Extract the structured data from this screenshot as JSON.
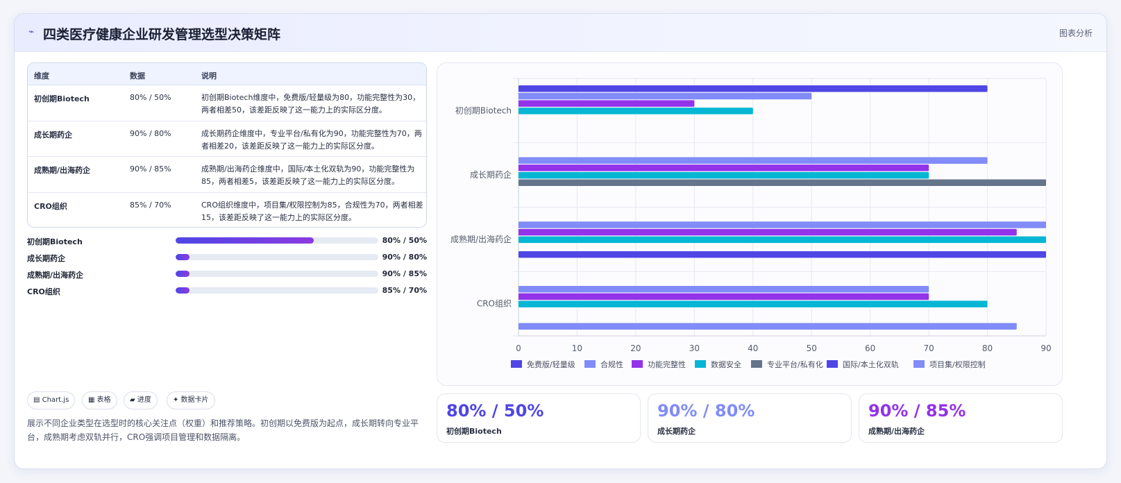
{
  "header": {
    "title": "四类医疗健康企业研发管理选型决策矩阵",
    "tag": "图表分析",
    "icon": "sparkle-icon"
  },
  "table": {
    "headers": [
      "维度",
      "数据",
      "说明"
    ],
    "rows": [
      {
        "dim": "初创期Biotech",
        "data": "80% / 50%",
        "note": "初创期Biotech维度中，免费版/轻量级为80，功能完整性为30，两者相差50，该差距反映了这一能力上的实际区分度。"
      },
      {
        "dim": "成长期药企",
        "data": "90% / 80%",
        "note": "成长期药企维度中，专业平台/私有化为90，功能完整性为70，两者相差20，该差距反映了这一能力上的实际区分度。"
      },
      {
        "dim": "成熟期/出海药企",
        "data": "90% / 85%",
        "note": "成熟期/出海药企维度中，国际/本土化双轨为90，功能完整性为85，两者相差5，该差距反映了这一能力上的实际区分度。"
      },
      {
        "dim": "CRO组织",
        "data": "85% / 70%",
        "note": "CRO组织维度中，项目集/权限控制为85，合规性为70，两者相差15，该差距反映了这一能力上的实际区分度。"
      }
    ]
  },
  "progress": [
    {
      "label": "初创期Biotech",
      "value": "80% / 50%",
      "fill": 0.68
    },
    {
      "label": "成长期药企",
      "value": "90% / 80%",
      "fill": 0.07
    },
    {
      "label": "成熟期/出海药企",
      "value": "90% / 85%",
      "fill": 0.07
    },
    {
      "label": "CRO组织",
      "value": "85% / 70%",
      "fill": 0.07
    }
  ],
  "chips": [
    "▤ Chart.js",
    "▦ 表格",
    "▰ 进度",
    "✦ 数据卡片"
  ],
  "description": "展示不同企业类型在选型时的核心关注点（权重）和推荐策略。初创期以免费版为起点，成长期转向专业平台，成熟期考虑双轨并行，CRO强调项目管理和数据隔离。",
  "stats": [
    {
      "value": "80% / 50%",
      "label": "初创期Biotech",
      "color": "#4f46e5"
    },
    {
      "value": "90% / 80%",
      "label": "成长期药企",
      "color": "#818cf8"
    },
    {
      "value": "90% / 85%",
      "label": "成熟期/出海药企",
      "color": "#9333ea"
    }
  ],
  "chart_data": {
    "type": "bar",
    "orientation": "horizontal",
    "categories": [
      "初创期Biotech",
      "成长期药企",
      "成熟期/出海药企",
      "CRO组织"
    ],
    "series": [
      {
        "name": "免费版/轻量级",
        "color": "#4f46e5",
        "values": [
          80,
          null,
          null,
          null
        ]
      },
      {
        "name": "合规性",
        "color": "#818cf8",
        "values": [
          50,
          80,
          90,
          70
        ]
      },
      {
        "name": "功能完整性",
        "color": "#9333ea",
        "values": [
          30,
          70,
          85,
          70
        ]
      },
      {
        "name": "数据安全",
        "color": "#06b6d4",
        "values": [
          40,
          70,
          90,
          80
        ]
      },
      {
        "name": "专业平台/私有化",
        "color": "#64748b",
        "values": [
          null,
          90,
          null,
          null
        ]
      },
      {
        "name": "国际/本土化双轨",
        "color": "#4f46e5",
        "values": [
          null,
          null,
          90,
          null
        ]
      },
      {
        "name": "项目集/权限控制",
        "color": "#818cf8",
        "values": [
          null,
          null,
          null,
          85
        ]
      }
    ],
    "xlim": [
      0,
      90
    ],
    "xticks": [
      0,
      10,
      20,
      30,
      40,
      50,
      60,
      70,
      80,
      90
    ],
    "grid": true,
    "legend_position": "bottom"
  }
}
